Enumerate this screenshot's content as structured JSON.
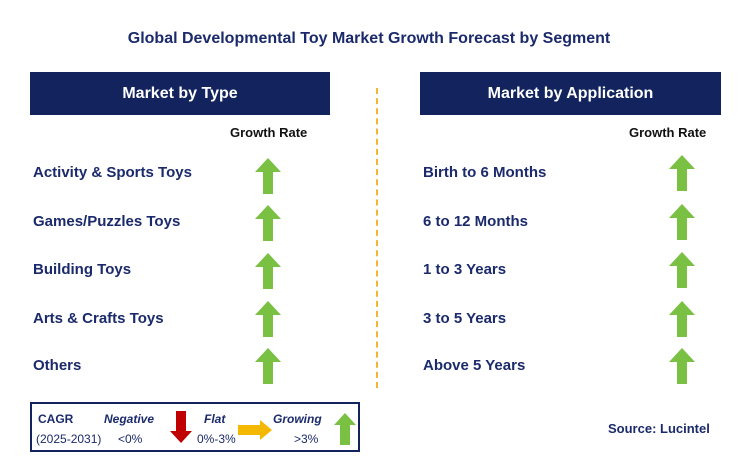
{
  "title": "Global Developmental Toy Market Growth Forecast by Segment",
  "left_panel": {
    "header": "Market by Type",
    "growth_label": "Growth Rate",
    "items": [
      {
        "label": "Activity & Sports Toys",
        "trend": "growing"
      },
      {
        "label": "Games/Puzzles Toys",
        "trend": "growing"
      },
      {
        "label": "Building Toys",
        "trend": "growing"
      },
      {
        "label": "Arts & Crafts Toys",
        "trend": "growing"
      },
      {
        "label": "Others",
        "trend": "growing"
      }
    ]
  },
  "right_panel": {
    "header": "Market by Application",
    "growth_label": "Growth Rate",
    "items": [
      {
        "label": "Birth to 6 Months",
        "trend": "growing"
      },
      {
        "label": "6 to 12 Months",
        "trend": "growing"
      },
      {
        "label": "1 to 3 Years",
        "trend": "growing"
      },
      {
        "label": "3 to 5 Years",
        "trend": "growing"
      },
      {
        "label": "Above 5 Years",
        "trend": "growing"
      }
    ]
  },
  "legend": {
    "cagr_label": "CAGR",
    "period": "(2025-2031)",
    "negative_label": "Negative",
    "negative_range": "<0%",
    "flat_label": "Flat",
    "flat_range": "0%-3%",
    "growing_label": "Growing",
    "growing_range": ">3%"
  },
  "source": "Source: Lucintel",
  "colors": {
    "header_bg": "#12235e",
    "up_arrow": "#7ac143",
    "down_arrow": "#c00000",
    "flat_arrow": "#f5b800",
    "divider": "#f2b632"
  }
}
